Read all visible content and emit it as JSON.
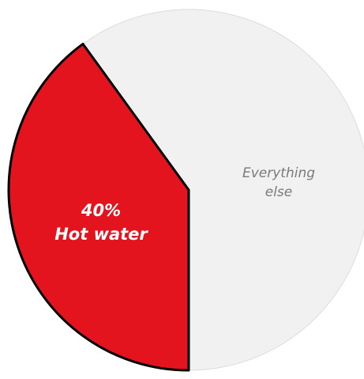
{
  "chart_data": {
    "type": "pie",
    "title": "",
    "slices": [
      {
        "name": "Hot water",
        "value": 40,
        "value_label": "40%",
        "label": "Hot water",
        "color": "#e3141d",
        "outline": "#000000"
      },
      {
        "name": "Everything else",
        "value": 60,
        "label_lines": [
          "Everything",
          "else"
        ],
        "color": "#f1f1f1",
        "outline": "#dcdcdc"
      }
    ],
    "start_direction": "bottom",
    "legend": "none"
  }
}
